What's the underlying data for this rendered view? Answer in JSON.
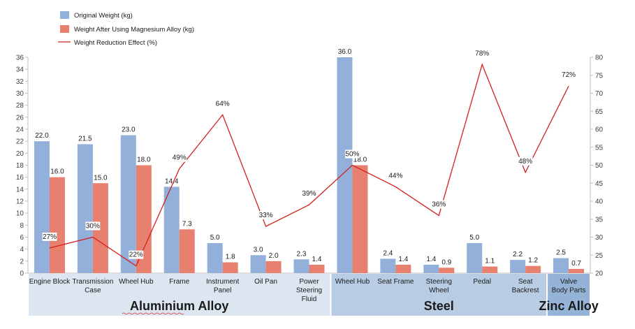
{
  "chart_data": {
    "type": "bar",
    "categories": [
      "Engine Block",
      "Transmission Case",
      "Wheel Hub",
      "Frame",
      "Instrument Panel",
      "Oil Pan",
      "Power Steering Fluid",
      "Wheel Hub",
      "Seat Frame",
      "Steering Wheel",
      "Pedal",
      "Seat Backrest",
      "Valve Body Parts"
    ],
    "category_lines": [
      [
        "Engine Block"
      ],
      [
        "Transmission",
        "Case"
      ],
      [
        "Wheel Hub"
      ],
      [
        "Frame"
      ],
      [
        "Instrument",
        "Panel"
      ],
      [
        "Oil Pan"
      ],
      [
        "Power",
        "Steering",
        "Fluid"
      ],
      [
        "Wheel Hub"
      ],
      [
        "Seat Frame"
      ],
      [
        "Steering",
        "Wheel"
      ],
      [
        "Pedal"
      ],
      [
        "Seat",
        "Backrest"
      ],
      [
        "Valve",
        "Body Parts"
      ]
    ],
    "series": [
      {
        "name": "Original Weight (kg)",
        "type": "bar",
        "color": "#92B0DA",
        "axis": "left",
        "values": [
          22.0,
          21.5,
          23.0,
          14.4,
          5.0,
          3.0,
          2.3,
          36.0,
          2.4,
          1.4,
          5.0,
          2.2,
          2.5
        ],
        "labels": [
          "22.0",
          "21.5",
          "23.0",
          "14.4",
          "5.0",
          "3.0",
          "2.3",
          "36.0",
          "2.4",
          "1.4",
          "5.0",
          "2.2",
          "2.5"
        ]
      },
      {
        "name": "Weight After Using Magnesium Alloy (kg)",
        "type": "bar",
        "color": "#E8806F",
        "axis": "left",
        "values": [
          16.0,
          15.0,
          18.0,
          7.3,
          1.8,
          2.0,
          1.4,
          18.0,
          1.4,
          0.9,
          1.1,
          1.2,
          0.7
        ],
        "labels": [
          "16.0",
          "15.0",
          "18.0",
          "7.3",
          "1.8",
          "2.0",
          "1.4",
          "18.0",
          "1.4",
          "0.9",
          "1.1",
          "1.2",
          "0.7"
        ]
      },
      {
        "name": "Weight Reduction Effect (%)",
        "type": "line",
        "color": "#D51F1F",
        "axis": "right",
        "values": [
          27,
          30,
          22,
          49,
          64,
          33,
          39,
          50,
          44,
          36,
          78,
          48,
          72
        ],
        "labels": [
          "27%",
          "30%",
          "22%",
          "49%",
          "64%",
          "33%",
          "39%",
          "50%",
          "44%",
          "36%",
          "78%",
          "48%",
          "72%"
        ]
      }
    ],
    "y_left": {
      "min": 0,
      "max": 36,
      "step": 2,
      "ticks": [
        "0",
        "2",
        "4",
        "6",
        "8",
        "10",
        "12",
        "14",
        "16",
        "18",
        "20",
        "22",
        "24",
        "26",
        "28",
        "30",
        "32",
        "34",
        "36"
      ]
    },
    "y_right": {
      "min": 20,
      "max": 80,
      "step": 5,
      "ticks": [
        "20",
        "25",
        "30",
        "35",
        "40",
        "45",
        "50",
        "55",
        "60",
        "65",
        "70",
        "75",
        "80"
      ]
    },
    "groups": [
      {
        "label": "Aluminium Alloy",
        "from": 0,
        "to": 6,
        "color": "#DCE6F1"
      },
      {
        "label": "Steel",
        "from": 7,
        "to": 11,
        "color": "#B8CCE4"
      },
      {
        "label": "Zinc Alloy",
        "from": 12,
        "to": 12,
        "color": "#95B3D7"
      }
    ],
    "legend_position": "top-left",
    "grid": false
  }
}
